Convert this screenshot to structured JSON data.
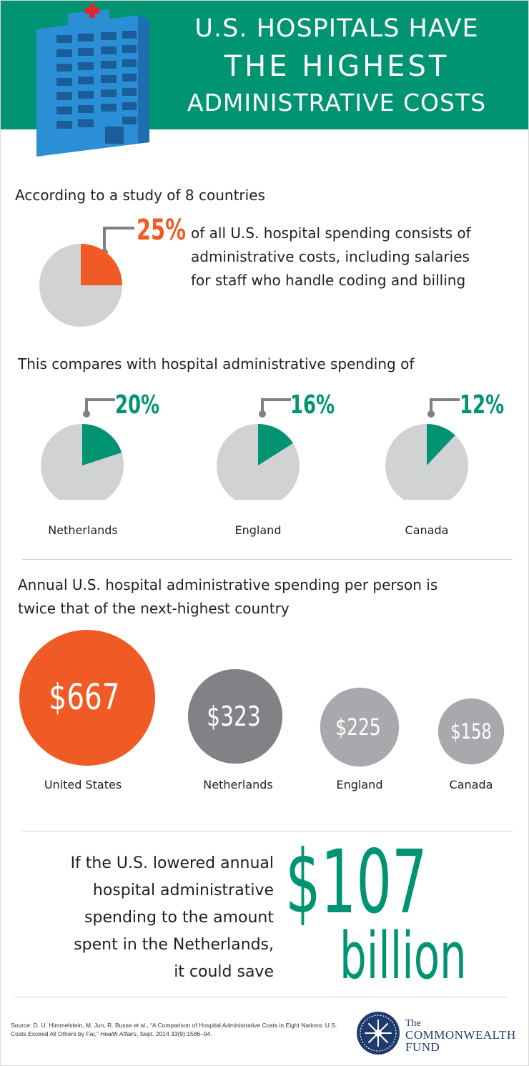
{
  "header": {
    "title_line1": "U.S. HOSPITALS HAVE",
    "title_line2": "THE HIGHEST",
    "title_line3": "ADMINISTRATIVE COSTS",
    "banner_color": "#009473"
  },
  "section1": {
    "intro": "According to a study of 8 countries",
    "us_share_label": "25%",
    "description_line1": "of all U.S. hospital spending consists of",
    "description_line2": "administrative costs, including salaries",
    "description_line3": "for staff who handle coding and billing"
  },
  "section2": {
    "intro": "This compares with hospital administrative spending of",
    "countries": [
      {
        "name": "Netherlands",
        "share_label": "20%"
      },
      {
        "name": "England",
        "share_label": "16%"
      },
      {
        "name": "Canada",
        "share_label": "12%"
      }
    ]
  },
  "section3": {
    "intro_line1": "Annual U.S. hospital administrative spending per person is",
    "intro_line2": "twice that of the next-highest country",
    "countries": [
      {
        "name": "United States",
        "value_label": "$667"
      },
      {
        "name": "Netherlands",
        "value_label": "$323"
      },
      {
        "name": "England",
        "value_label": "$225"
      },
      {
        "name": "Canada",
        "value_label": "$158"
      }
    ]
  },
  "section4": {
    "line1": "If the U.S. lowered annual",
    "line2": "hospital administrative",
    "line3": "spending to the amount",
    "line4": "spent in the Netherlands,",
    "line5": "it could save",
    "amount": "$107",
    "unit": "billion"
  },
  "footer": {
    "source_prefix": "Source: D. U. Himmelstein, M. Jun, R. Busse et al., “A Comparison of Hospital Administrative Costs in Eight Nations: U.S. Costs Exceed All Others by Far,” ",
    "source_journal": "Health Affairs",
    "source_suffix": ", Sept. 2014 33(9):1586–94.",
    "logo_line1": "The",
    "logo_line2": "COMMONWEALTH",
    "logo_line3": "FUND"
  },
  "chart_data": [
    {
      "type": "pie",
      "categories": [
        "United States",
        "Netherlands",
        "England",
        "Canada"
      ],
      "values": [
        25,
        20,
        16,
        12
      ],
      "unit": "%"
    },
    {
      "type": "bubble",
      "categories": [
        "United States",
        "Netherlands",
        "England",
        "Canada"
      ],
      "values": [
        667,
        323,
        225,
        158
      ],
      "unit": "$"
    }
  ],
  "colors": {
    "us_accent": "#f05a24",
    "green_accent": "#009473",
    "pie_remainder": "#d1d2d4",
    "bubble_netherlands": "#808285",
    "bubble_small": "#a7a9ac"
  }
}
